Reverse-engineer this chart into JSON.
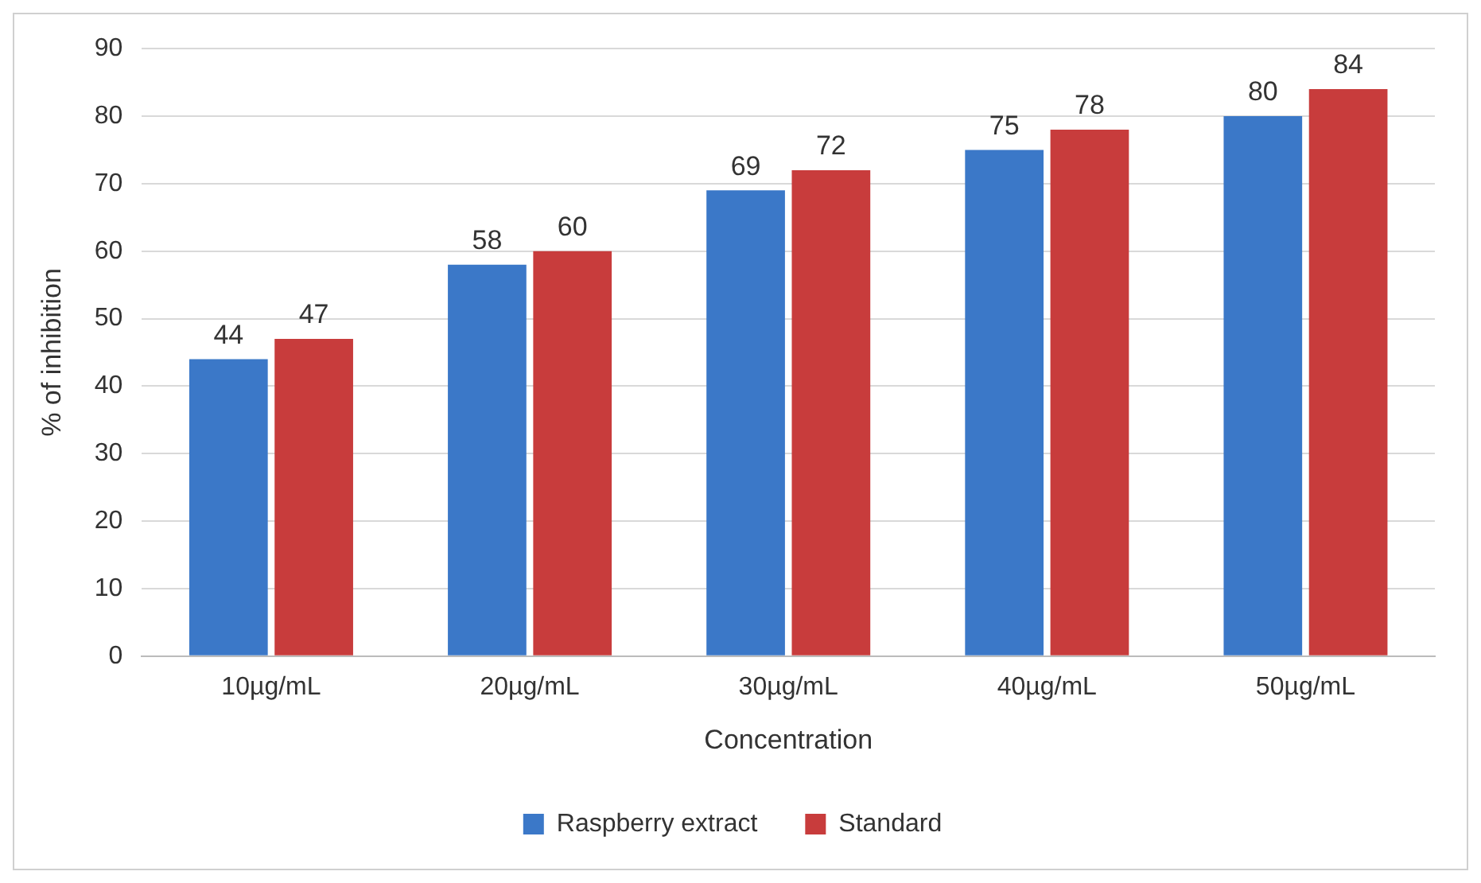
{
  "chart_data": {
    "type": "bar",
    "xlabel": "Concentration",
    "ylabel": "% of inhibition",
    "categories": [
      "10µg/mL",
      "20µg/mL",
      "30µg/mL",
      "40µg/mL",
      "50µg/mL"
    ],
    "series": [
      {
        "name": "Raspberry extract",
        "color": "#3b78c8",
        "values": [
          44,
          58,
          69,
          75,
          80
        ]
      },
      {
        "name": "Standard",
        "color": "#c83c3c",
        "values": [
          47,
          60,
          72,
          78,
          84
        ]
      }
    ],
    "ylim": [
      0,
      90
    ],
    "yticks": [
      0,
      10,
      20,
      30,
      40,
      50,
      60,
      70,
      80,
      90
    ],
    "grid": "y",
    "legend": "bottom",
    "data_labels": true
  }
}
